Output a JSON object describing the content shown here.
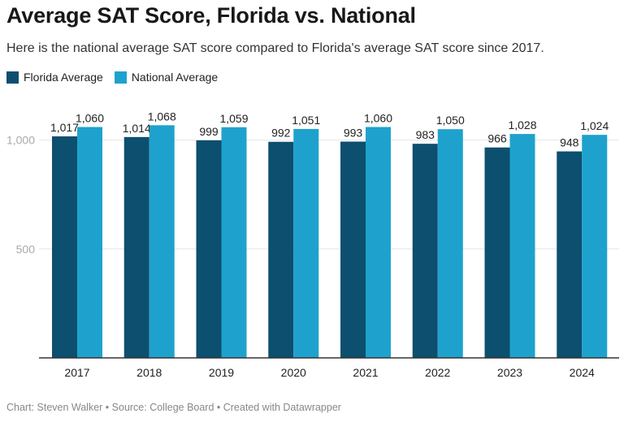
{
  "header": {
    "title": "Average SAT Score, Florida vs. National",
    "subtitle": "Here is the national average SAT score compared to Florida's average SAT score since 2017."
  },
  "footer": {
    "credit": "Chart: Steven Walker • Source: College Board • Created with Datawrapper"
  },
  "colors": {
    "florida": "#0c4f6e",
    "national": "#1ea2cd",
    "gridline": "#e6e6e6",
    "baseline": "#333333",
    "tick_label": "#aaaaaa"
  },
  "chart_data": {
    "type": "bar",
    "title": "Average SAT Score, Florida vs. National",
    "xlabel": "",
    "ylabel": "",
    "categories": [
      "2017",
      "2018",
      "2019",
      "2020",
      "2021",
      "2022",
      "2023",
      "2024"
    ],
    "series": [
      {
        "name": "Florida Average",
        "values": [
          1017,
          1014,
          999,
          992,
          993,
          983,
          966,
          948
        ],
        "labels": [
          "1,017",
          "1,014",
          "999",
          "992",
          "993",
          "983",
          "966",
          "948"
        ]
      },
      {
        "name": "National Average",
        "values": [
          1060,
          1068,
          1059,
          1051,
          1060,
          1050,
          1028,
          1024
        ],
        "labels": [
          "1,060",
          "1,068",
          "1,059",
          "1,051",
          "1,060",
          "1,050",
          "1,028",
          "1,024"
        ]
      }
    ],
    "yticks": [
      {
        "value": 500,
        "label": "500"
      },
      {
        "value": 1000,
        "label": "1,000"
      }
    ],
    "ylim": [
      0,
      1100
    ],
    "grid": true,
    "legend_position": "top-left"
  }
}
